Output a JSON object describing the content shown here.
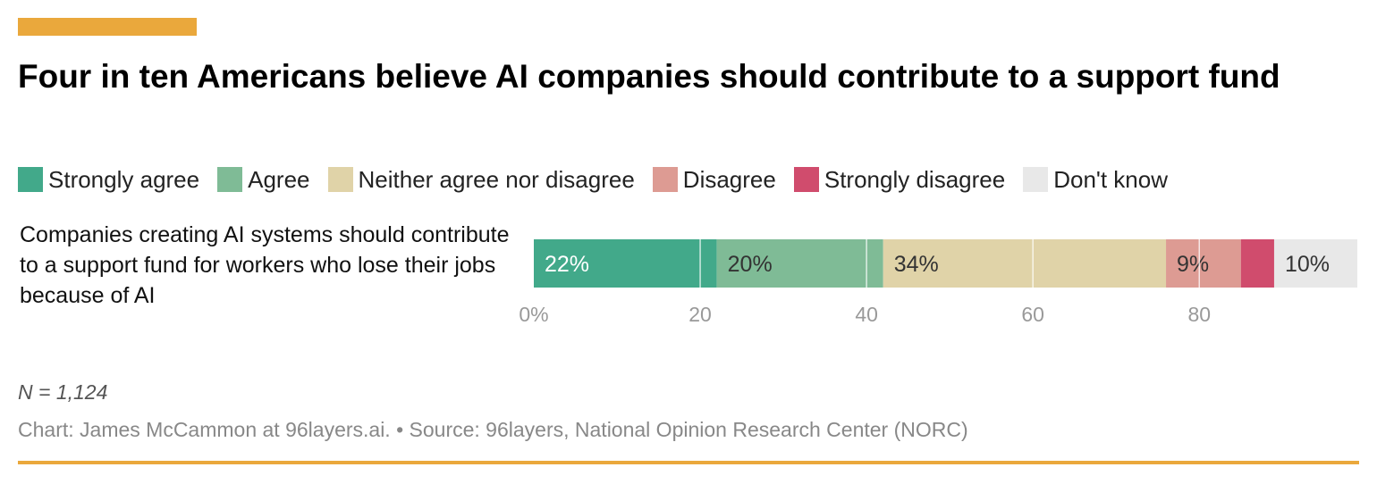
{
  "header": {
    "title": "Four in ten Americans believe AI companies should contribute to a support fund"
  },
  "colors": {
    "accent": "#eaa83c"
  },
  "chart_data": {
    "type": "bar",
    "orientation": "horizontal-stacked",
    "categories": [
      "Companies creating AI systems should contribute to a support fund for workers who lose their jobs because of AI"
    ],
    "series": [
      {
        "name": "Strongly agree",
        "values": [
          22
        ],
        "label": "22%",
        "color": "#42a98a",
        "label_color": "#ffffff"
      },
      {
        "name": "Agree",
        "values": [
          20
        ],
        "label": "20%",
        "color": "#7fbb96",
        "label_color": "#333333"
      },
      {
        "name": "Neither agree nor disagree",
        "values": [
          34
        ],
        "label": "34%",
        "color": "#e0d3a8",
        "label_color": "#333333"
      },
      {
        "name": "Disagree",
        "values": [
          9
        ],
        "label": "9%",
        "color": "#dd9b93",
        "label_color": "#333333"
      },
      {
        "name": "Strongly disagree",
        "values": [
          4
        ],
        "label": "",
        "color": "#d04c6d",
        "label_color": "#ffffff"
      },
      {
        "name": "Don't know",
        "values": [
          10
        ],
        "label": "10%",
        "color": "#e8e8e8",
        "label_color": "#333333"
      }
    ],
    "x_ticks": [
      {
        "value": 0,
        "label": "0%"
      },
      {
        "value": 20,
        "label": "20"
      },
      {
        "value": 40,
        "label": "40"
      },
      {
        "value": 60,
        "label": "60"
      },
      {
        "value": 80,
        "label": "80"
      }
    ],
    "xlim": [
      0,
      99
    ],
    "grid": true,
    "legend_position": "top"
  },
  "footer": {
    "note": "N = 1,124",
    "credit": "Chart: James McCammon at 96layers.ai. • Source: 96layers, National Opinion Research Center (NORC)"
  }
}
